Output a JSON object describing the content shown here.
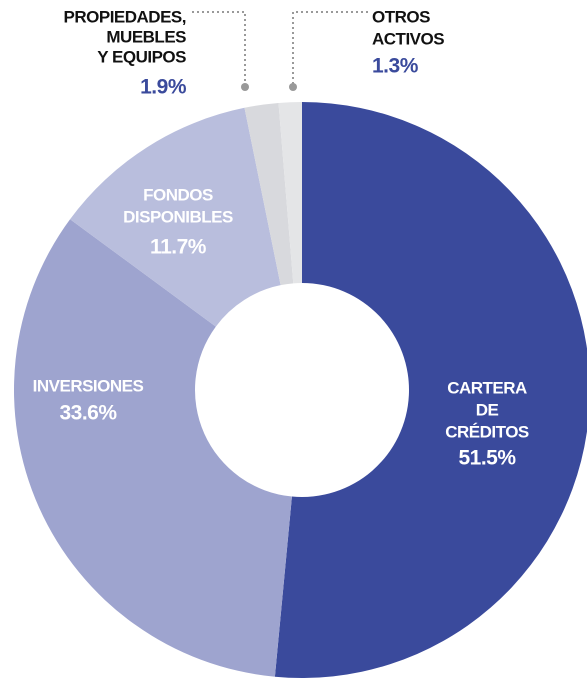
{
  "chart_data": {
    "type": "donut",
    "categories": [
      [
        "CARTERA",
        "DE",
        "CRÉDITOS"
      ],
      [
        "INVERSIONES"
      ],
      [
        "FONDOS",
        "DISPONIBLES"
      ],
      [
        "PROPIEDADES,",
        "MUEBLES",
        "Y EQUIPOS"
      ],
      [
        "OTROS",
        "ACTIVOS"
      ]
    ],
    "values": [
      51.5,
      33.6,
      11.7,
      1.9,
      1.3
    ],
    "value_labels": [
      "51.5%",
      "33.6%",
      "11.7%",
      "1.9%",
      "1.3%"
    ],
    "colors": [
      "#3a4a9c",
      "#9ea4cf",
      "#b9bedd",
      "#d8d9dd",
      "#e4e5e7"
    ]
  }
}
